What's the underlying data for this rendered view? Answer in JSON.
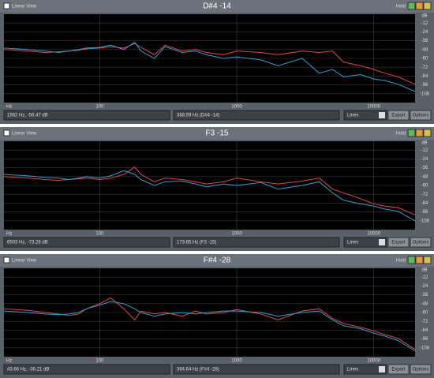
{
  "panels": [
    {
      "view_label": "Linear View",
      "title": "D#4 -14",
      "hold_label": "Hold",
      "status_left": "1562 Hz, -56.47 dB",
      "status_mid": "388.59 Hz (D#4 -14)",
      "mode": "Lines",
      "buttons": [
        "Export",
        "Options"
      ],
      "chart": {
        "type": "line",
        "x_unit": "Hz",
        "y_unit": "dB",
        "log_x": true,
        "grid": true,
        "x": [
          20,
          30,
          40,
          50,
          60,
          70,
          80,
          100,
          120,
          150,
          180,
          200,
          250,
          300,
          400,
          500,
          600,
          800,
          1000,
          1500,
          2000,
          3000,
          4000,
          5000,
          6000,
          8000,
          10000,
          12000,
          15000,
          20000
        ],
        "xlim": [
          20,
          20000
        ],
        "xticks": [
          100,
          1000,
          10000
        ],
        "ylim": [
          -120,
          0
        ],
        "yticks": [
          -12,
          -24,
          -36,
          -48,
          -60,
          -72,
          -84,
          -96,
          -108
        ],
        "series": [
          {
            "color": "#e0474c",
            "values": [
              -48,
              -50,
              -52,
              -51,
              -50,
              -49,
              -47,
              -46,
              -44,
              -46,
              -40,
              -45,
              -55,
              -42,
              -50,
              -48,
              -52,
              -55,
              -50,
              -52,
              -55,
              -50,
              -52,
              -50,
              -65,
              -70,
              -75,
              -80,
              -85,
              -95
            ]
          },
          {
            "color": "#2f9fd0",
            "values": [
              -46,
              -48,
              -50,
              -52,
              -50,
              -48,
              -46,
              -45,
              -42,
              -48,
              -38,
              -50,
              -60,
              -44,
              -52,
              -50,
              -55,
              -60,
              -58,
              -62,
              -70,
              -60,
              -80,
              -75,
              -85,
              -82,
              -88,
              -90,
              -95,
              -105
            ]
          }
        ]
      }
    },
    {
      "view_label": "Linear View",
      "title": "F3 -15",
      "hold_label": "Hold",
      "status_left": "6503 Hz, -73.28 dB",
      "status_mid": "173.85 Hz (F3 -15)",
      "mode": "Lines",
      "buttons": [
        "Export",
        "Options"
      ],
      "chart": {
        "type": "line",
        "x_unit": "Hz",
        "y_unit": "dB",
        "log_x": true,
        "grid": true,
        "x": [
          20,
          30,
          40,
          50,
          60,
          70,
          80,
          100,
          120,
          150,
          180,
          200,
          250,
          300,
          400,
          500,
          600,
          800,
          1000,
          1500,
          2000,
          3000,
          4000,
          5000,
          6000,
          8000,
          10000,
          12000,
          15000,
          20000
        ],
        "xlim": [
          20,
          20000
        ],
        "xticks": [
          100,
          1000,
          10000
        ],
        "ylim": [
          -120,
          0
        ],
        "yticks": [
          -12,
          -24,
          -36,
          -48,
          -60,
          -72,
          -84,
          -96,
          -108
        ],
        "series": [
          {
            "color": "#e0474c",
            "values": [
              -48,
              -50,
              -52,
              -53,
              -52,
              -51,
              -50,
              -52,
              -50,
              -45,
              -35,
              -45,
              -55,
              -50,
              -52,
              -55,
              -58,
              -55,
              -50,
              -55,
              -58,
              -54,
              -50,
              -65,
              -70,
              -78,
              -85,
              -88,
              -90,
              -100
            ]
          },
          {
            "color": "#2f9fd0",
            "values": [
              -45,
              -47,
              -49,
              -50,
              -52,
              -50,
              -48,
              -50,
              -47,
              -40,
              -45,
              -52,
              -60,
              -55,
              -54,
              -58,
              -62,
              -58,
              -60,
              -56,
              -65,
              -60,
              -55,
              -70,
              -80,
              -85,
              -88,
              -92,
              -95,
              -108
            ]
          }
        ]
      }
    },
    {
      "view_label": "Linear View",
      "title": "F#4 -28",
      "hold_label": "Hold",
      "status_left": "43.66 Hz, -36.21 dB",
      "status_mid": "364.64 Hz (F#4 -28)",
      "mode": "Lines",
      "buttons": [
        "Export",
        "Options"
      ],
      "chart": {
        "type": "line",
        "x_unit": "Hz",
        "y_unit": "dB",
        "log_x": true,
        "grid": true,
        "x": [
          20,
          30,
          40,
          50,
          60,
          70,
          80,
          100,
          120,
          150,
          180,
          200,
          250,
          300,
          400,
          500,
          600,
          800,
          1000,
          1500,
          2000,
          3000,
          4000,
          5000,
          6000,
          8000,
          10000,
          12000,
          15000,
          20000
        ],
        "xlim": [
          20,
          20000
        ],
        "xticks": [
          100,
          1000,
          10000
        ],
        "ylim": [
          -120,
          0
        ],
        "yticks": [
          -12,
          -24,
          -36,
          -48,
          -60,
          -72,
          -84,
          -96,
          -108
        ],
        "series": [
          {
            "color": "#e0474c",
            "values": [
              -55,
              -57,
              -60,
              -62,
              -64,
              -62,
              -55,
              -48,
              -40,
              -55,
              -70,
              -58,
              -62,
              -60,
              -65,
              -58,
              -62,
              -60,
              -56,
              -62,
              -70,
              -58,
              -55,
              -68,
              -75,
              -80,
              -85,
              -90,
              -95,
              -110
            ]
          },
          {
            "color": "#2f9fd0",
            "values": [
              -58,
              -60,
              -62,
              -63,
              -62,
              -60,
              -55,
              -50,
              -45,
              -48,
              -55,
              -60,
              -65,
              -62,
              -60,
              -62,
              -60,
              -58,
              -58,
              -60,
              -65,
              -60,
              -58,
              -70,
              -78,
              -82,
              -88,
              -92,
              -98,
              -112
            ]
          }
        ]
      }
    }
  ]
}
